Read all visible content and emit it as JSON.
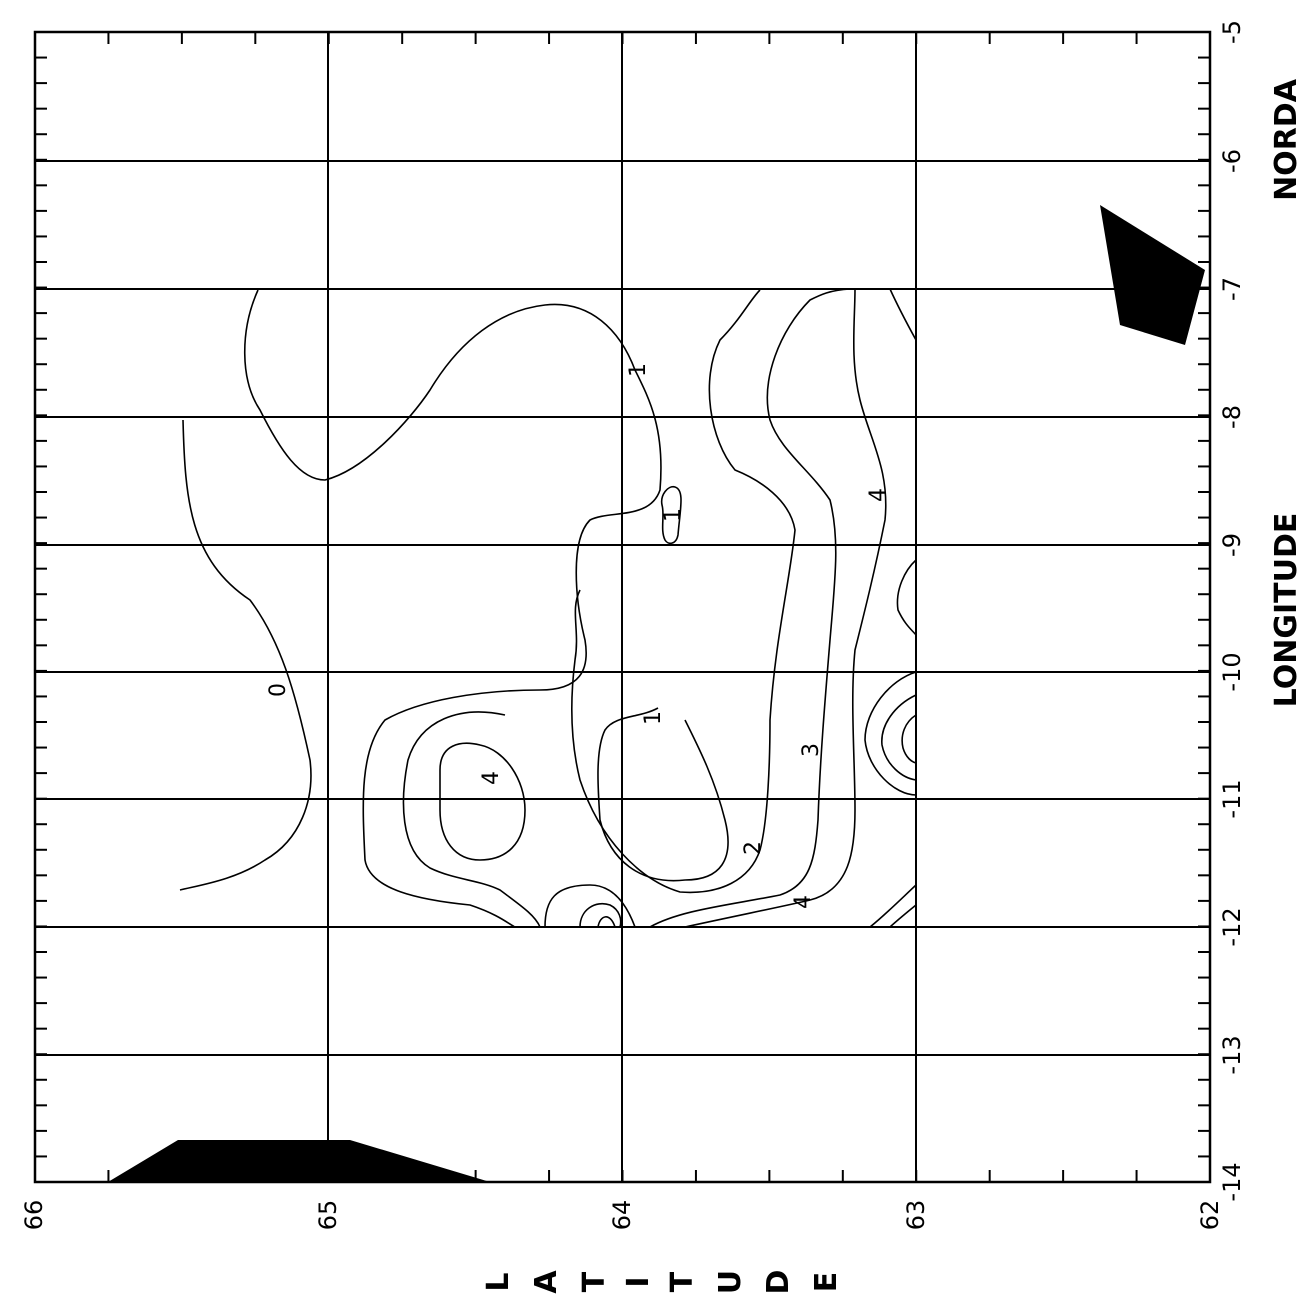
{
  "map": {
    "x_axis": {
      "ticks": [
        "-14",
        "-13",
        "-12",
        "-11",
        "-10",
        "-9",
        "-8",
        "-7",
        "-6",
        "-5"
      ],
      "title": "LONGITUDE"
    },
    "y_axis": {
      "ticks": [
        "66",
        "65",
        "64",
        "63",
        "62"
      ],
      "title": "LATITUDE",
      "title_letters": [
        "L",
        "A",
        "T",
        "I",
        "T",
        "U",
        "D",
        "E"
      ]
    },
    "credit": "NORDA",
    "contour_labels": [
      "0",
      "1",
      "1",
      "1",
      "2",
      "3",
      "4",
      "4",
      "4"
    ],
    "colors": {
      "ink": "#000000",
      "land": "#000000",
      "background": "#ffffff"
    }
  }
}
